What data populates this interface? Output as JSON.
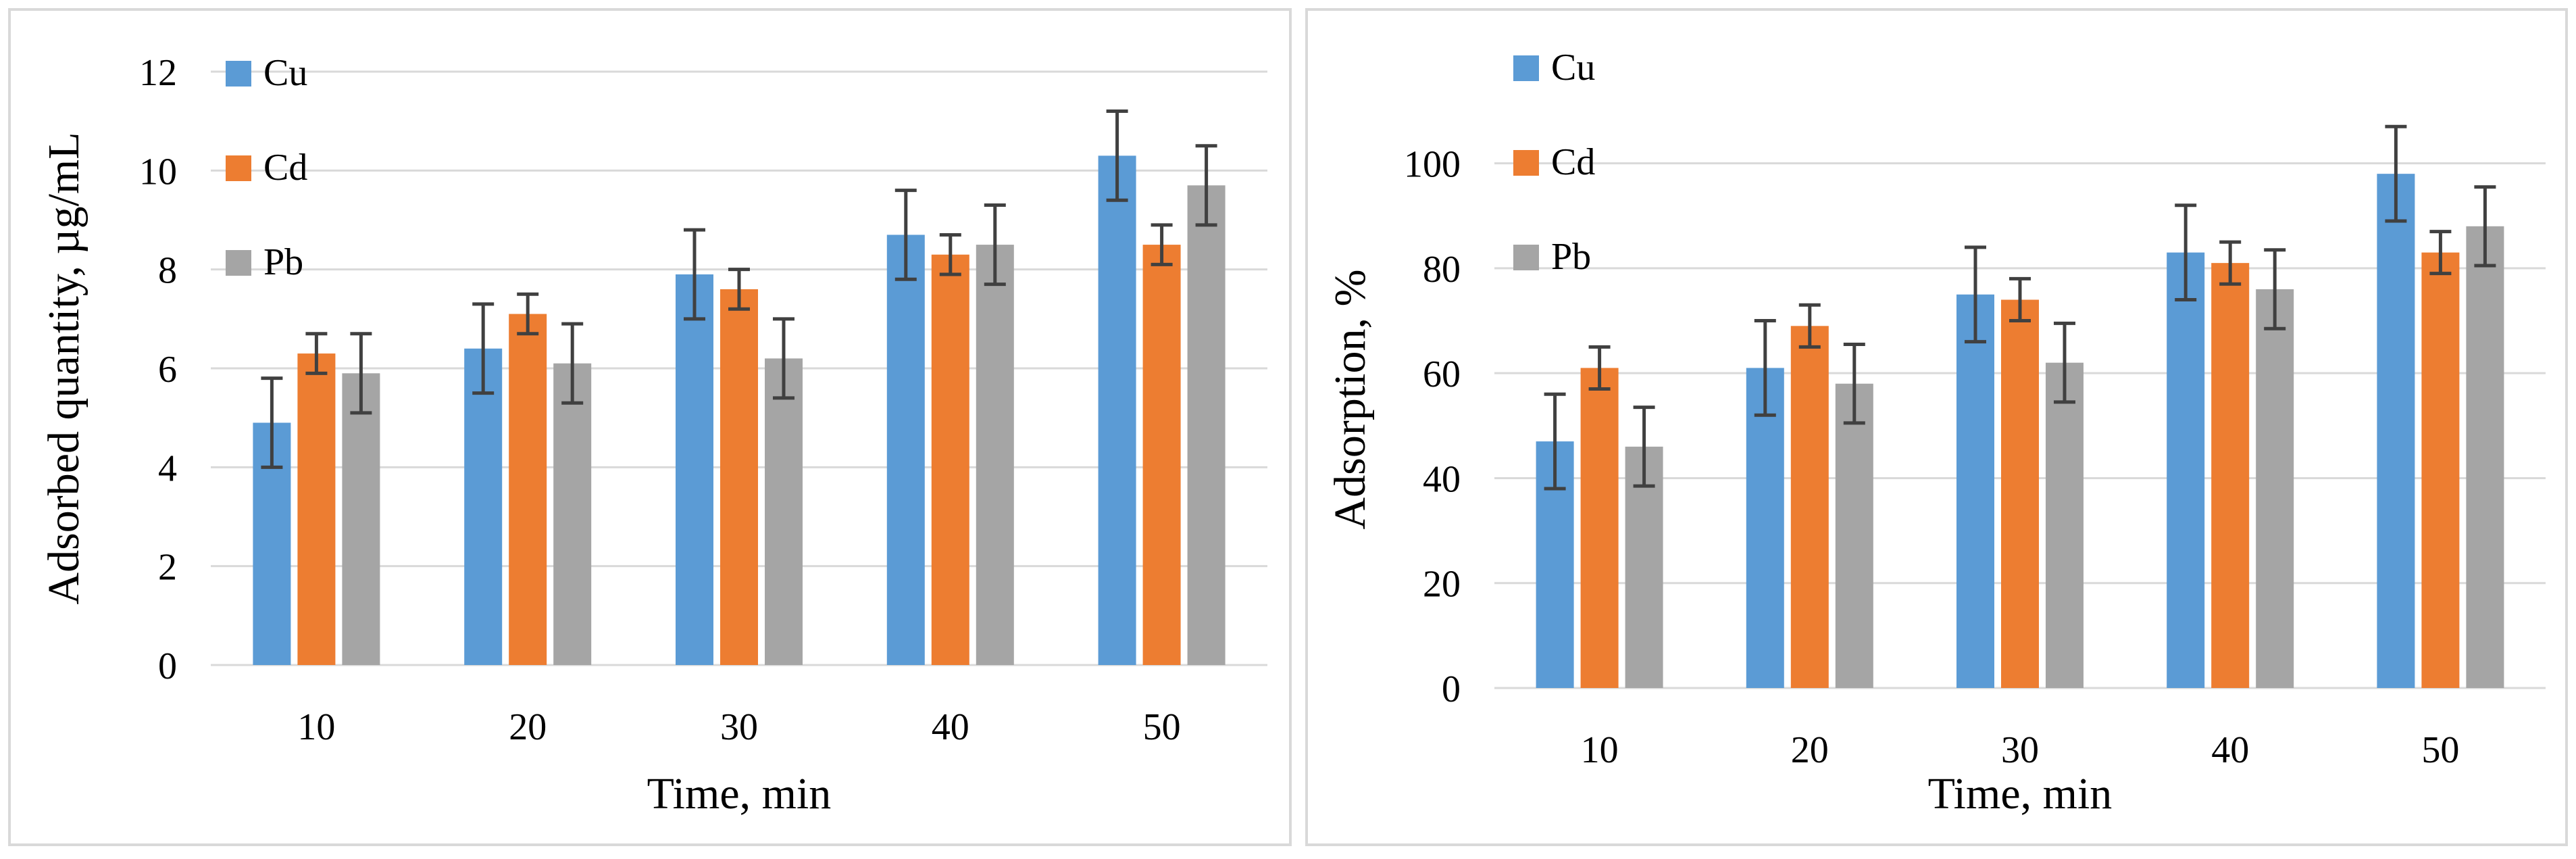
{
  "chart_data": [
    {
      "type": "bar",
      "title": "",
      "xlabel": "Time, min",
      "ylabel": "Adsorbed quantity, µg/mL",
      "categories": [
        "10",
        "20",
        "30",
        "40",
        "50"
      ],
      "ylim": [
        0,
        12
      ],
      "yticks": [
        "0",
        "2",
        "4",
        "6",
        "8",
        "10",
        "12"
      ],
      "grid": true,
      "legend_position": "top-left",
      "series": [
        {
          "name": "Cu",
          "color": "#5b9bd5",
          "values": [
            4.9,
            6.4,
            7.9,
            8.7,
            10.3
          ],
          "errors": [
            0.9,
            0.9,
            0.9,
            0.9,
            0.9
          ]
        },
        {
          "name": "Cd",
          "color": "#ed7d31",
          "values": [
            6.3,
            7.1,
            7.6,
            8.3,
            8.5
          ],
          "errors": [
            0.4,
            0.4,
            0.4,
            0.4,
            0.4
          ]
        },
        {
          "name": "Pb",
          "color": "#a5a5a5",
          "values": [
            5.9,
            6.1,
            6.2,
            8.5,
            9.7
          ],
          "errors": [
            0.8,
            0.8,
            0.8,
            0.8,
            0.8
          ]
        }
      ]
    },
    {
      "type": "bar",
      "title": "",
      "xlabel": "Time, min",
      "ylabel": "Adsorption, %",
      "categories": [
        "10",
        "20",
        "30",
        "40",
        "50"
      ],
      "ylim": [
        0,
        110
      ],
      "yticks": [
        "0",
        "20",
        "40",
        "60",
        "80",
        "100"
      ],
      "grid": true,
      "legend_position": "top-left",
      "series": [
        {
          "name": "Cu",
          "color": "#5b9bd5",
          "values": [
            47,
            61,
            75,
            83,
            98
          ],
          "errors": [
            9,
            9,
            9,
            9,
            9
          ]
        },
        {
          "name": "Cd",
          "color": "#ed7d31",
          "values": [
            61,
            69,
            74,
            81,
            83
          ],
          "errors": [
            4,
            4,
            4,
            4,
            4
          ]
        },
        {
          "name": "Pb",
          "color": "#a5a5a5",
          "values": [
            46,
            58,
            62,
            76,
            88
          ],
          "errors": [
            7.5,
            7.5,
            7.5,
            7.5,
            7.5
          ]
        }
      ]
    }
  ]
}
